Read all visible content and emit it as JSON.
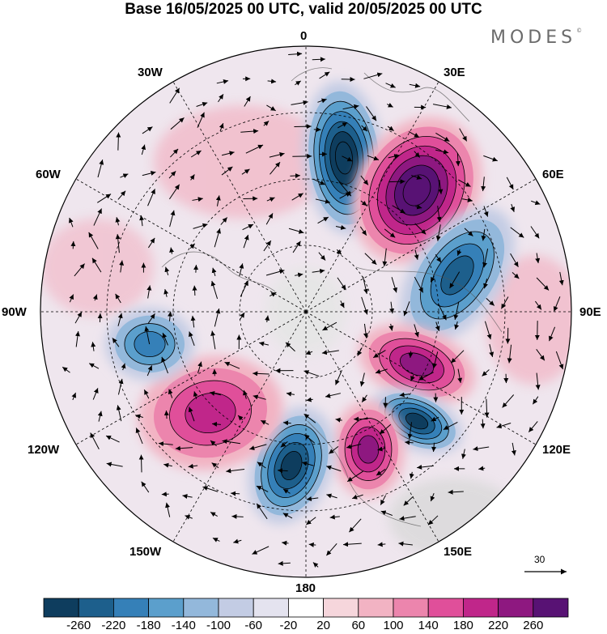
{
  "title": "Base 16/05/2025 00 UTC, valid 20/05/2025 00 UTC",
  "brand": {
    "text": "MODES",
    "mark": "©"
  },
  "map": {
    "projection": "north-polar-stereographic",
    "longitude_labels": {
      "0": "0",
      "30E": "30E",
      "60E": "60E",
      "90E": "90E",
      "120E": "120E",
      "150E": "150E",
      "180": "180",
      "150W": "150W",
      "120W": "120W",
      "90W": "90W",
      "60W": "60W",
      "30W": "30W"
    },
    "reference_vector": {
      "label": "30",
      "icon": "arrow-right-icon"
    },
    "anomaly_centers": [
      {
        "name": "north-atlantic-negative",
        "sign": "negative",
        "magnitude": 260
      },
      {
        "name": "europe-positive",
        "sign": "positive",
        "magnitude": 260
      },
      {
        "name": "siberia-negative",
        "sign": "negative",
        "magnitude": 200
      },
      {
        "name": "east-asia-positive",
        "sign": "positive",
        "magnitude": 180
      },
      {
        "name": "north-pacific-negative",
        "sign": "negative",
        "magnitude": 220
      },
      {
        "name": "bering-positive",
        "sign": "positive",
        "magnitude": 180
      },
      {
        "name": "northeast-pacific-negative",
        "sign": "negative",
        "magnitude": 220
      },
      {
        "name": "north-america-positive",
        "sign": "positive",
        "magnitude": 140
      },
      {
        "name": "japan-negative",
        "sign": "negative",
        "magnitude": 160
      }
    ]
  },
  "colorbar": {
    "ticks": [
      "-260",
      "-220",
      "-180",
      "-140",
      "-100",
      "-60",
      "-20",
      "20",
      "60",
      "100",
      "140",
      "180",
      "220",
      "260"
    ],
    "colors": [
      "#0e3d5e",
      "#1d5f8c",
      "#3580b8",
      "#5b9fcc",
      "#93b8db",
      "#c3cce4",
      "#e4e3ef",
      "#ffffff",
      "#f6d6dc",
      "#f2b3c3",
      "#ec85ad",
      "#e04f9a",
      "#c0268a",
      "#8e1880",
      "#581274"
    ]
  }
}
